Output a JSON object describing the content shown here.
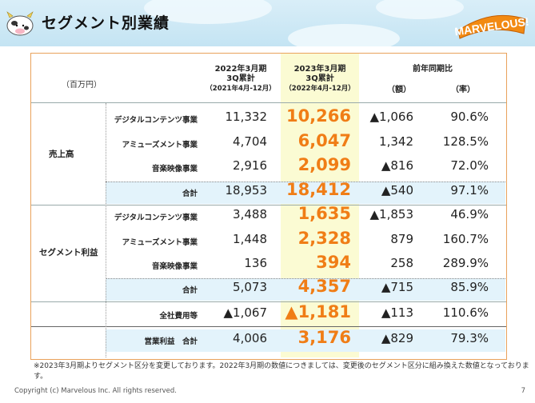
{
  "title": "セグメント別業績",
  "logo_text": "MARVELOUS!",
  "unit": "（百万円）",
  "headers": {
    "prev": [
      "2022年3月期",
      "3Q累計",
      "（2021年4月-12月）"
    ],
    "cur": [
      "2023年3月期",
      "3Q累計",
      "（2022年4月-12月）"
    ],
    "yoy": "前年同期比",
    "diff": "（額）",
    "rate": "（率）"
  },
  "groups": {
    "sales": "売上高",
    "profit": "セグメント利益"
  },
  "rows": [
    {
      "label": "デジタルコンテンツ事業",
      "prev": "11,332",
      "cur": "10,266",
      "diff": "▲1,066",
      "rate": "90.6%"
    },
    {
      "label": "アミューズメント事業",
      "prev": "4,704",
      "cur": "6,047",
      "diff": "1,342",
      "rate": "128.5%"
    },
    {
      "label": "音楽映像事業",
      "prev": "2,916",
      "cur": "2,099",
      "diff": "▲816",
      "rate": "72.0%"
    },
    {
      "label": "合計",
      "prev": "18,953",
      "cur": "18,412",
      "diff": "▲540",
      "rate": "97.1%"
    },
    {
      "label": "デジタルコンテンツ事業",
      "prev": "3,488",
      "cur": "1,635",
      "diff": "▲1,853",
      "rate": "46.9%"
    },
    {
      "label": "アミューズメント事業",
      "prev": "1,448",
      "cur": "2,328",
      "diff": "879",
      "rate": "160.7%"
    },
    {
      "label": "音楽映像事業",
      "prev": "136",
      "cur": "394",
      "diff": "258",
      "rate": "289.9%"
    },
    {
      "label": "合計",
      "prev": "5,073",
      "cur": "4,357",
      "diff": "▲715",
      "rate": "85.9%"
    },
    {
      "label": "全社費用等",
      "prev": "▲1,067",
      "cur": "▲1,181",
      "diff": "▲113",
      "rate": "110.6%"
    },
    {
      "label": "営業利益　合計",
      "prev": "4,006",
      "cur": "3,176",
      "diff": "▲829",
      "rate": "79.3%"
    }
  ],
  "footnote": "※2023年3月期よりセグメント区分を変更しております。2022年3月期の数値につきましては、変更後のセグメント区分に組み換えた数値となっております。",
  "copyright": "Copyright (c) Marvelous Inc. All rights reserved.",
  "page_number": "7",
  "colors": {
    "accent": "#f07d16",
    "highlight_col": "#fbfbd3",
    "subtotal_band": "#e3f3fb",
    "frame": "#e9a25b"
  }
}
